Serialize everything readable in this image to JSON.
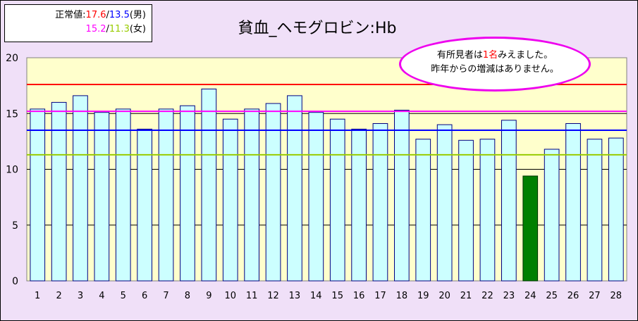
{
  "legend": {
    "prefix": "正常値:",
    "male_hi": "17.6",
    "sep1": "/",
    "male_lo": "13.5",
    "male_suffix": "(男)",
    "female_hi": "15.2",
    "sep2": "/",
    "female_lo": "11.3",
    "female_suffix": "(女)"
  },
  "note": {
    "line1_pre": "有所見者は",
    "line1_num": "1名",
    "line1_post": "みえました。",
    "line2": "昨年からの増減はありません。"
  },
  "colors": {
    "bar_fill": "#ccffff",
    "bar_stroke": "#000080",
    "highlight_fill": "#008000",
    "plot_bg": "#ffffcc",
    "male_hi": "#ff0000",
    "male_lo": "#0000ff",
    "female_hi": "#ff00ff",
    "female_lo": "#99cc00"
  },
  "chart_data": {
    "type": "bar",
    "title": "貧血_ヘモグロビン:Hb",
    "xlabel": "",
    "ylabel": "",
    "ylim": [
      0,
      20
    ],
    "yticks": [
      0,
      5,
      10,
      15,
      20
    ],
    "grid": true,
    "categories": [
      "1",
      "2",
      "3",
      "4",
      "5",
      "6",
      "7",
      "8",
      "9",
      "10",
      "11",
      "12",
      "13",
      "14",
      "15",
      "16",
      "17",
      "18",
      "19",
      "20",
      "21",
      "22",
      "23",
      "24",
      "25",
      "26",
      "27",
      "28"
    ],
    "values": [
      15.4,
      16.0,
      16.6,
      15.1,
      15.4,
      13.6,
      15.4,
      15.7,
      17.2,
      14.5,
      15.4,
      15.9,
      16.6,
      15.1,
      14.5,
      13.6,
      14.1,
      15.3,
      12.7,
      14.0,
      12.6,
      12.7,
      14.4,
      9.4,
      11.8,
      14.1,
      12.7,
      12.8
    ],
    "highlight_index": 23,
    "reference_lines": [
      {
        "value": 17.6,
        "color": "#ff0000"
      },
      {
        "value": 15.2,
        "color": "#ff00ff"
      },
      {
        "value": 13.5,
        "color": "#0000ff"
      },
      {
        "value": 11.3,
        "color": "#99cc00"
      }
    ]
  }
}
